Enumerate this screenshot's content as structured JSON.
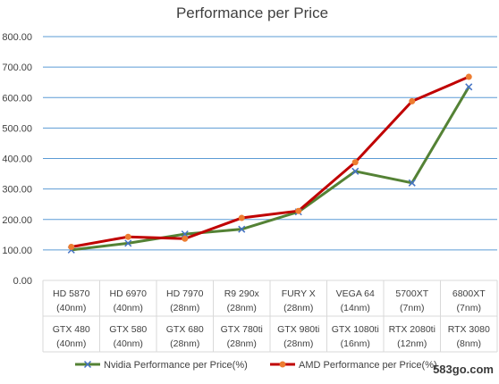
{
  "chart_data": {
    "type": "line",
    "title": "Performance per Price",
    "categories": [
      [
        "HD 5870",
        "(40nm)",
        "GTX 480",
        "(40nm)"
      ],
      [
        "HD 6970",
        "(40nm)",
        "GTX 580",
        "(40nm)"
      ],
      [
        "HD 7970",
        "(28nm)",
        "GTX 680",
        "(28nm)"
      ],
      [
        "R9 290x",
        "(28nm)",
        "GTX 780ti",
        "(28nm)"
      ],
      [
        "FURY X",
        "(28nm)",
        "GTX 980ti",
        "(28nm)"
      ],
      [
        "VEGA 64",
        "(14nm)",
        "GTX 1080ti",
        "(16nm)"
      ],
      [
        "5700XT",
        "(7nm)",
        "RTX 2080ti",
        "(12nm)"
      ],
      [
        "6800XT",
        "(7nm)",
        "RTX 3080",
        "(8nm)"
      ]
    ],
    "series": [
      {
        "name": "Nvidia Performance per Price(%)",
        "color": "#548235",
        "marker": "x",
        "marker_color": "#4472c4",
        "values": [
          100,
          122,
          152,
          168,
          225,
          358,
          320,
          635
        ]
      },
      {
        "name": "AMD Performance per Price(%)",
        "color": "#c00000",
        "marker": "circle",
        "marker_color": "#ed7d31",
        "values": [
          110,
          143,
          137,
          205,
          228,
          388,
          588,
          668
        ]
      }
    ],
    "ylim": [
      0,
      800
    ],
    "yticks": [
      "0.00",
      "100.00",
      "200.00",
      "300.00",
      "400.00",
      "500.00",
      "600.00",
      "700.00",
      "800.00"
    ],
    "grid": true,
    "grid_color": "#5b9bd5",
    "legend_position": "bottom"
  },
  "watermark": "583go.com"
}
